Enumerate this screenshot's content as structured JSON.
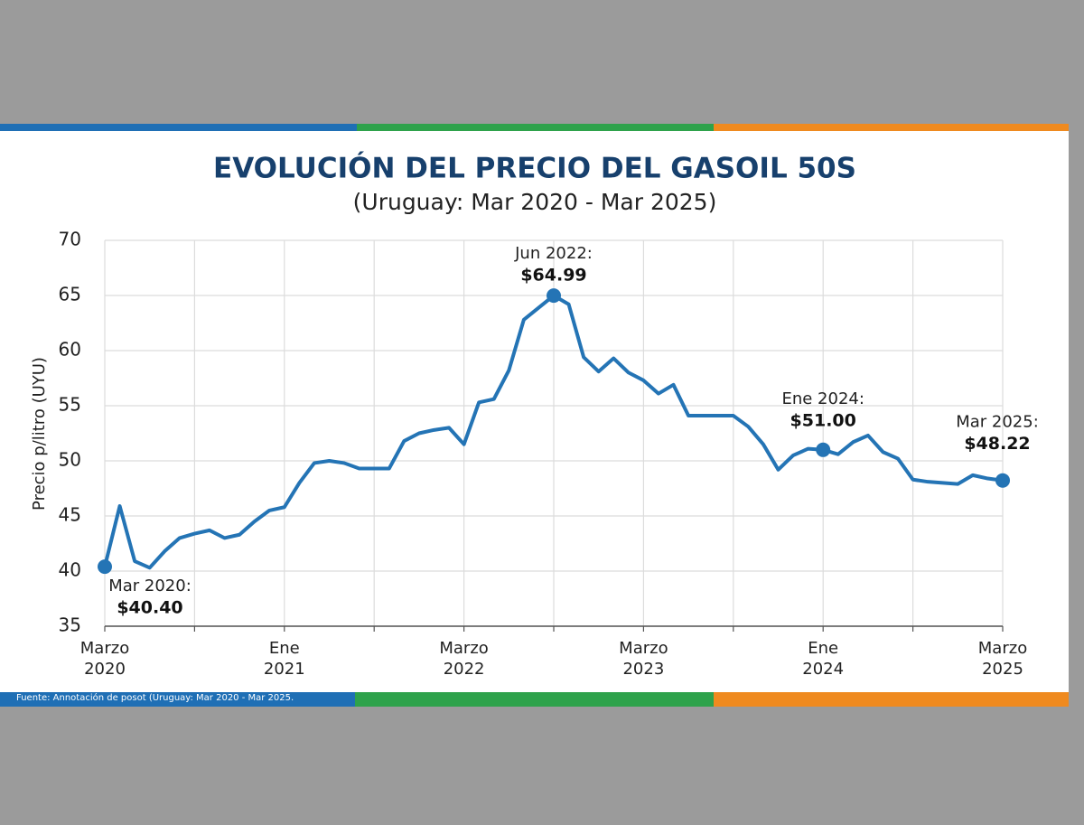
{
  "chart_data": {
    "type": "line",
    "title": "EVOLUCIÓN DEL PRECIO DEL GASOIL 50S",
    "subtitle": "(Uruguay: Mar 2020 - Mar 2025)",
    "y_label": "Precio p/litro (UYU)",
    "source": "Fuente: Annotación de posot (Uruguay: Mar 2020 - Mar 2025.",
    "x": [
      0,
      1,
      2,
      3,
      4,
      5,
      6,
      7,
      8,
      9,
      10,
      11,
      12,
      13,
      14,
      15,
      16,
      17,
      18,
      19,
      20,
      21,
      22,
      23,
      24,
      25,
      26,
      27,
      28,
      29,
      30,
      31,
      32,
      33,
      34,
      35,
      36,
      37,
      38,
      39,
      40,
      41,
      42,
      43,
      44,
      45,
      46,
      47,
      48,
      49,
      50,
      51,
      52,
      53,
      54,
      55,
      56,
      57,
      58,
      59,
      60
    ],
    "series": [
      {
        "color": "#2474b5",
        "values": [
          40.4,
          45.9,
          40.9,
          40.3,
          41.8,
          43.0,
          43.4,
          43.7,
          43.0,
          43.3,
          44.5,
          45.5,
          45.8,
          48.0,
          49.8,
          50.0,
          49.8,
          49.3,
          49.3,
          49.3,
          51.8,
          52.5,
          52.8,
          53.0,
          51.5,
          55.3,
          55.6,
          58.2,
          62.8,
          63.9,
          64.99,
          64.2,
          59.4,
          58.1,
          59.3,
          58.0,
          57.3,
          56.1,
          56.9,
          54.1,
          54.1,
          54.1,
          54.1,
          53.1,
          51.5,
          49.2,
          50.5,
          51.1,
          51.0,
          50.6,
          51.7,
          52.3,
          50.8,
          50.2,
          48.3,
          48.1,
          48.0,
          47.9,
          48.7,
          48.4,
          48.22
        ]
      }
    ],
    "annotations": [
      {
        "x": 0,
        "text": "Mar 2020:",
        "value_label": "$40.40"
      },
      {
        "x": 30,
        "text": "Jun 2022:",
        "value_label": "$64.99"
      },
      {
        "x": 48,
        "text": "Ene 2024:",
        "value_label": "$51.00"
      },
      {
        "x": 60,
        "text": "Mar 2025:",
        "value_label": "$48.22"
      }
    ],
    "xlim": [
      0,
      60
    ],
    "xticks": [
      {
        "value": 0,
        "label": "Marzo 2020"
      },
      {
        "value": 6,
        "label": null
      },
      {
        "value": 12,
        "label": "Ene 2021"
      },
      {
        "value": 18,
        "label": null
      },
      {
        "value": 24,
        "label": "Marzo 2022"
      },
      {
        "value": 30,
        "label": null
      },
      {
        "value": 36,
        "label": "Marzo 2023"
      },
      {
        "value": 42,
        "label": null
      },
      {
        "value": 48,
        "label": "Ene 2024"
      },
      {
        "value": 54,
        "label": null
      },
      {
        "value": 60,
        "label": "Marzo 2025"
      }
    ],
    "ylim": [
      35,
      70
    ],
    "yticks": [
      35,
      40,
      45,
      50,
      55,
      60,
      65,
      70
    ],
    "grid": true
  }
}
